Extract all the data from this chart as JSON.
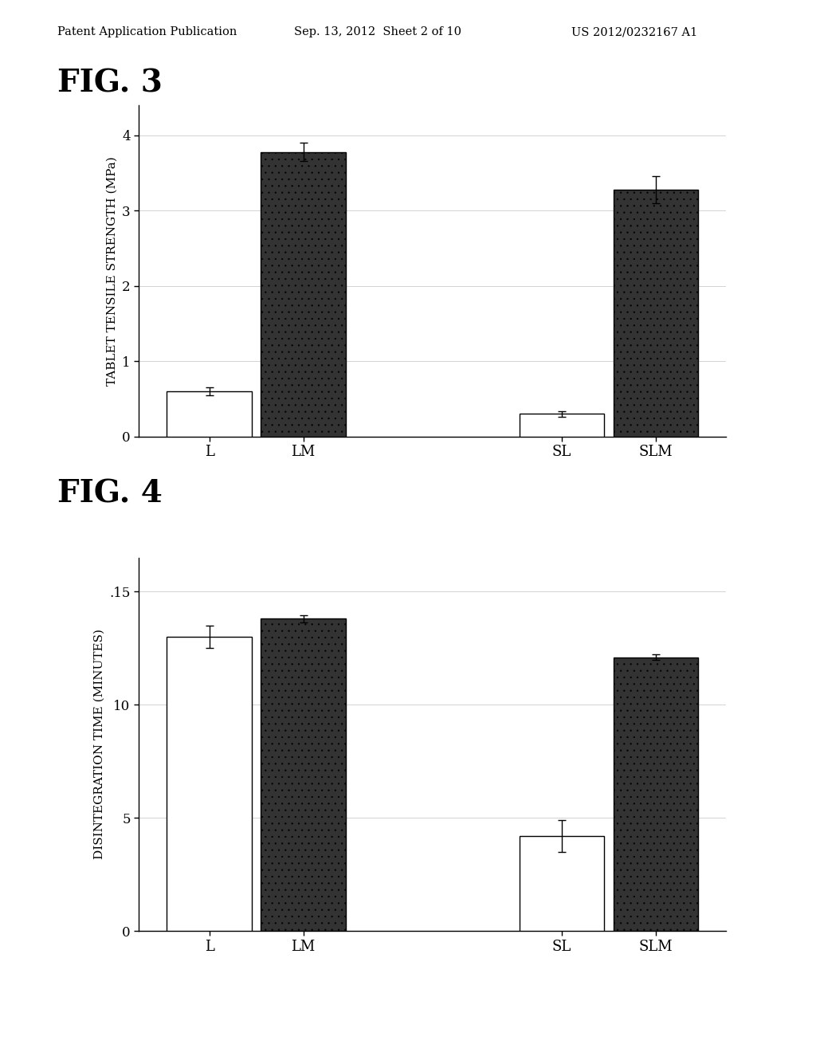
{
  "header_left": "Patent Application Publication",
  "header_center": "Sep. 13, 2012  Sheet 2 of 10",
  "header_right": "US 2012/0232167 A1",
  "fig3": {
    "label": "FIG. 3",
    "categories": [
      "L",
      "LM",
      "SL",
      "SLM"
    ],
    "values": [
      0.6,
      3.78,
      0.3,
      3.28
    ],
    "errors": [
      0.05,
      0.12,
      0.04,
      0.18
    ],
    "bar_colors": [
      "white",
      "#333333",
      "white",
      "#333333"
    ],
    "bar_hatches": [
      null,
      "..",
      null,
      ".."
    ],
    "ylabel": "TABLET TENSILE STRENGTH (MPa)",
    "ylim": [
      0,
      4.4
    ],
    "yticks": [
      0,
      1,
      2,
      3,
      4
    ],
    "group_centers": [
      1.5,
      4.5
    ],
    "group_positions": [
      1.1,
      1.9,
      4.1,
      4.9
    ],
    "xlim": [
      0.5,
      5.5
    ]
  },
  "fig4": {
    "label": "FIG. 4",
    "categories": [
      "L",
      "LM",
      "SL",
      "SLM"
    ],
    "values": [
      13.0,
      13.8,
      4.2,
      12.1
    ],
    "errors": [
      0.5,
      0.15,
      0.7,
      0.12
    ],
    "bar_colors": [
      "white",
      "#333333",
      "white",
      "#333333"
    ],
    "bar_hatches": [
      null,
      "..",
      null,
      ".."
    ],
    "ylabel": "DISINTEGRATION TIME (MINUTES)",
    "ylim": [
      0,
      16.5
    ],
    "yticks": [
      0,
      5,
      10,
      15
    ],
    "ytick_labels": [
      "0",
      "5",
      "10",
      ".15"
    ],
    "group_centers": [
      1.5,
      4.5
    ],
    "group_positions": [
      1.1,
      1.9,
      4.1,
      4.9
    ],
    "xlim": [
      0.5,
      5.5
    ]
  },
  "background_color": "#ffffff",
  "bar_width": 0.72,
  "edgecolor": "black"
}
